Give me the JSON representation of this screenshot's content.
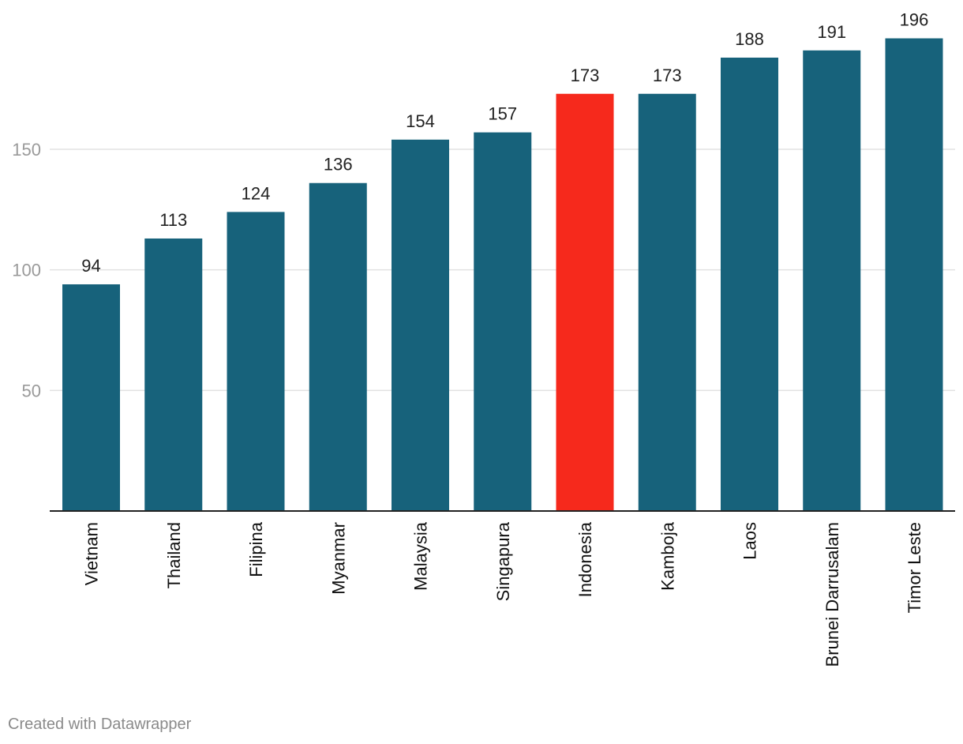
{
  "chart_data": {
    "type": "bar",
    "categories": [
      "Vietnam",
      "Thailand",
      "Filipina",
      "Myanmar",
      "Malaysia",
      "Singapura",
      "Indonesia",
      "Kamboja",
      "Laos",
      "Brunei Darrusalam",
      "Timor Leste"
    ],
    "values": [
      94,
      113,
      124,
      136,
      154,
      157,
      173,
      173,
      188,
      191,
      196
    ],
    "highlight": "Indonesia",
    "ylim": [
      0,
      200
    ],
    "yticks": [
      50,
      100,
      150
    ],
    "grid": true,
    "data_labels": true,
    "x_labels_rotated": true
  },
  "colors": {
    "bar": "#17627b",
    "highlight": "#f6291c",
    "grid": "#e2e2e2",
    "axis": "#222222",
    "tick_label": "#9a9a9a",
    "value_label": "#222222",
    "category_label": "#111111"
  },
  "footer": {
    "credit": "Created with Datawrapper"
  }
}
